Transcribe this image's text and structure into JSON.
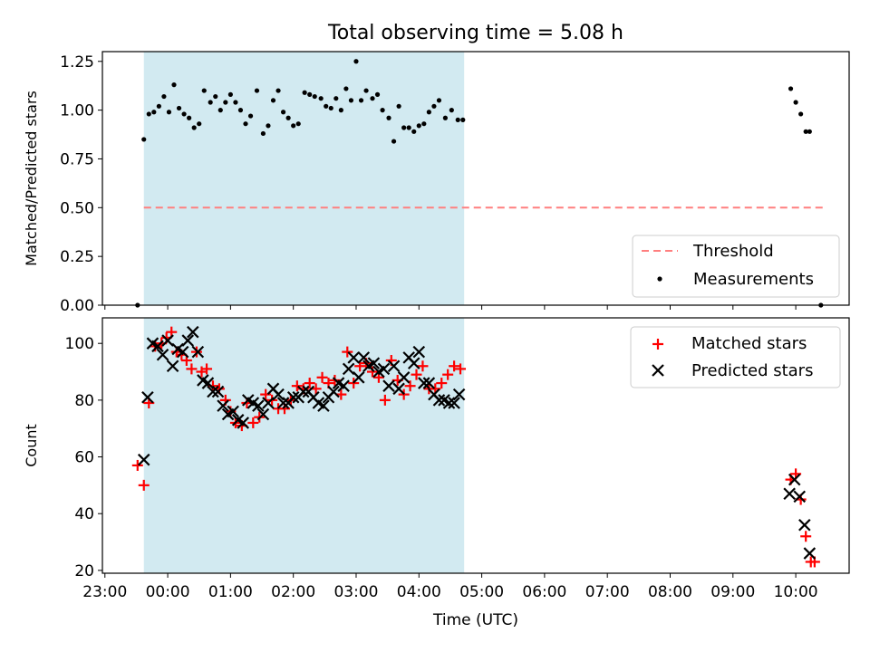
{
  "title": "Total observing time = 5.08 h",
  "chart_data": [
    {
      "type": "scatter",
      "ylabel": "Matched/Predicted stars",
      "xlabel": "",
      "ylim": [
        0,
        1.3
      ],
      "y_ticks": [
        "0.00",
        "0.25",
        "0.50",
        "0.75",
        "1.00",
        "1.25"
      ],
      "threshold": {
        "name": "Threshold",
        "value": 0.5,
        "color": "#ff7f7f",
        "style": "dashed"
      },
      "observing_window_hours": [
        0.62,
        5.72
      ],
      "window_color": "#add8e6",
      "series": [
        {
          "name": "Measurements",
          "color": "#000000",
          "x": [
            0.52,
            0.62,
            0.7,
            0.78,
            0.86,
            0.94,
            1.02,
            1.1,
            1.18,
            1.26,
            1.34,
            1.42,
            1.5,
            1.58,
            1.68,
            1.76,
            1.84,
            1.92,
            2.0,
            2.08,
            2.16,
            2.24,
            2.32,
            2.42,
            2.52,
            2.6,
            2.68,
            2.76,
            2.84,
            2.92,
            3.0,
            3.08,
            3.18,
            3.26,
            3.34,
            3.44,
            3.52,
            3.6,
            3.68,
            3.76,
            3.84,
            3.92,
            4.0,
            4.08,
            4.16,
            4.26,
            4.34,
            4.42,
            4.52,
            4.6,
            4.68,
            4.76,
            4.84,
            4.92,
            5.0,
            5.08,
            5.16,
            5.24,
            5.32,
            5.42,
            5.52,
            5.62,
            5.7,
            10.92,
            11.0,
            11.08,
            11.16,
            11.22,
            11.4
          ],
          "y": [
            0.0,
            0.85,
            0.98,
            0.99,
            1.02,
            1.07,
            0.99,
            1.13,
            1.01,
            0.98,
            0.96,
            0.91,
            0.93,
            1.1,
            1.04,
            1.07,
            1.0,
            1.04,
            1.08,
            1.04,
            1.0,
            0.93,
            0.97,
            1.1,
            0.88,
            0.92,
            1.05,
            1.1,
            0.99,
            0.96,
            0.92,
            0.93,
            1.09,
            1.08,
            1.07,
            1.06,
            1.02,
            1.01,
            1.06,
            1.0,
            1.11,
            1.05,
            1.25,
            1.05,
            1.1,
            1.06,
            1.08,
            1.0,
            0.96,
            0.84,
            1.02,
            0.91,
            0.91,
            0.89,
            0.92,
            0.93,
            0.99,
            1.02,
            1.05,
            0.96,
            1.0,
            0.95,
            0.95,
            1.11,
            1.04,
            0.98,
            0.89,
            0.89,
            0.0
          ]
        }
      ],
      "legend": {
        "placement": "lower-right",
        "entries": [
          "Threshold",
          "Measurements"
        ]
      }
    },
    {
      "type": "scatter",
      "ylabel": "Count",
      "xlabel": "Time (UTC)",
      "ylim": [
        19,
        109
      ],
      "y_ticks": [
        "20",
        "40",
        "60",
        "80",
        "100"
      ],
      "x_ticks": [
        "23:00",
        "00:00",
        "01:00",
        "02:00",
        "03:00",
        "04:00",
        "05:00",
        "06:00",
        "07:00",
        "08:00",
        "09:00",
        "10:00"
      ],
      "observing_window_hours": [
        0.62,
        5.72
      ],
      "window_color": "#add8e6",
      "series": [
        {
          "name": "Matched stars",
          "marker": "+",
          "color": "#ff0000",
          "x": [
            0.52,
            0.62,
            0.7,
            0.8,
            0.9,
            0.98,
            1.06,
            1.14,
            1.22,
            1.3,
            1.38,
            1.46,
            1.54,
            1.62,
            1.72,
            1.82,
            1.92,
            2.0,
            2.08,
            2.18,
            2.26,
            2.36,
            2.46,
            2.56,
            2.66,
            2.76,
            2.86,
            2.96,
            3.06,
            3.16,
            3.26,
            3.36,
            3.46,
            3.56,
            3.66,
            3.76,
            3.86,
            3.96,
            4.06,
            4.16,
            4.26,
            4.36,
            4.46,
            4.56,
            4.66,
            4.76,
            4.86,
            4.96,
            5.06,
            5.16,
            5.26,
            5.36,
            5.46,
            5.56,
            5.66,
            10.92,
            11.0,
            11.08,
            11.16,
            11.24,
            11.3
          ],
          "y": [
            57,
            50,
            79,
            99,
            100,
            102,
            104,
            97,
            96,
            94,
            91,
            97,
            90,
            91,
            85,
            84,
            80,
            76,
            72,
            71,
            79,
            72,
            74,
            82,
            80,
            77,
            77,
            80,
            85,
            84,
            86,
            84,
            88,
            86,
            87,
            82,
            97,
            86,
            92,
            93,
            90,
            88,
            80,
            94,
            87,
            82,
            85,
            89,
            92,
            84,
            84,
            86,
            89,
            92,
            91,
            52,
            54,
            45,
            32,
            23,
            23
          ]
        },
        {
          "name": "Predicted stars",
          "marker": "x",
          "color": "#000000",
          "x": [
            0.62,
            0.68,
            0.76,
            0.84,
            0.92,
            1.0,
            1.08,
            1.16,
            1.24,
            1.32,
            1.4,
            1.48,
            1.56,
            1.64,
            1.72,
            1.8,
            1.88,
            1.96,
            2.04,
            2.12,
            2.2,
            2.28,
            2.36,
            2.44,
            2.52,
            2.6,
            2.68,
            2.76,
            2.84,
            2.92,
            3.0,
            3.08,
            3.16,
            3.24,
            3.32,
            3.4,
            3.48,
            3.56,
            3.64,
            3.72,
            3.8,
            3.88,
            3.96,
            4.04,
            4.12,
            4.2,
            4.28,
            4.36,
            4.44,
            4.52,
            4.6,
            4.68,
            4.76,
            4.84,
            4.92,
            5.0,
            5.08,
            5.16,
            5.24,
            5.32,
            5.4,
            5.48,
            5.56,
            5.64,
            10.9,
            10.98,
            11.06,
            11.14,
            11.22
          ],
          "y": [
            59,
            81,
            100,
            99,
            96,
            101,
            92,
            98,
            97,
            101,
            104,
            97,
            87,
            86,
            83,
            83,
            78,
            75,
            76,
            73,
            72,
            80,
            79,
            78,
            75,
            79,
            84,
            82,
            79,
            79,
            81,
            81,
            83,
            83,
            81,
            79,
            78,
            81,
            83,
            86,
            85,
            91,
            95,
            88,
            95,
            92,
            93,
            90,
            91,
            85,
            92,
            84,
            88,
            95,
            93,
            97,
            86,
            86,
            82,
            80,
            80,
            79,
            79,
            82,
            47,
            52,
            46,
            36,
            26
          ]
        }
      ],
      "legend": {
        "placement": "upper-right",
        "entries": [
          "Matched stars",
          "Predicted stars"
        ]
      }
    }
  ]
}
